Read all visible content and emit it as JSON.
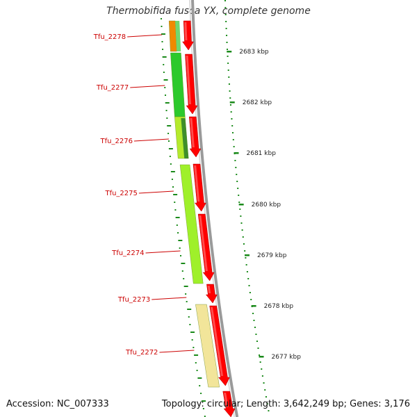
{
  "title": "Thermobifida fusca YX, complete genome",
  "footer": {
    "accession": "Accession: NC_007333",
    "topology": "Topology: circular; Length: 3,642,249 bp; Genes: 3,176"
  },
  "genes": [
    {
      "id": "Tfu_2278",
      "color": "#f08a00"
    },
    {
      "id": "Tfu_2277",
      "color": "#2cc92c"
    },
    {
      "id": "Tfu_2276",
      "color": "#b5ea2c"
    },
    {
      "id": "Tfu_2275",
      "color": "#9ff02a"
    },
    {
      "id": "Tfu_2274",
      "color": "#9ff02a"
    },
    {
      "id": "Tfu_2273",
      "color": "#ff0000"
    },
    {
      "id": "Tfu_2272",
      "color": "#f2e59a"
    }
  ],
  "kbp_ticks": [
    "2683 kbp",
    "2682 kbp",
    "2681 kbp",
    "2680 kbp",
    "2679 kbp",
    "2678 kbp",
    "2677 kbp"
  ],
  "colors": {
    "gene_arrow": "#ff0000",
    "backbone": "#9a9a9a",
    "tick": "#1a8a1a",
    "label": "#cc0000"
  }
}
